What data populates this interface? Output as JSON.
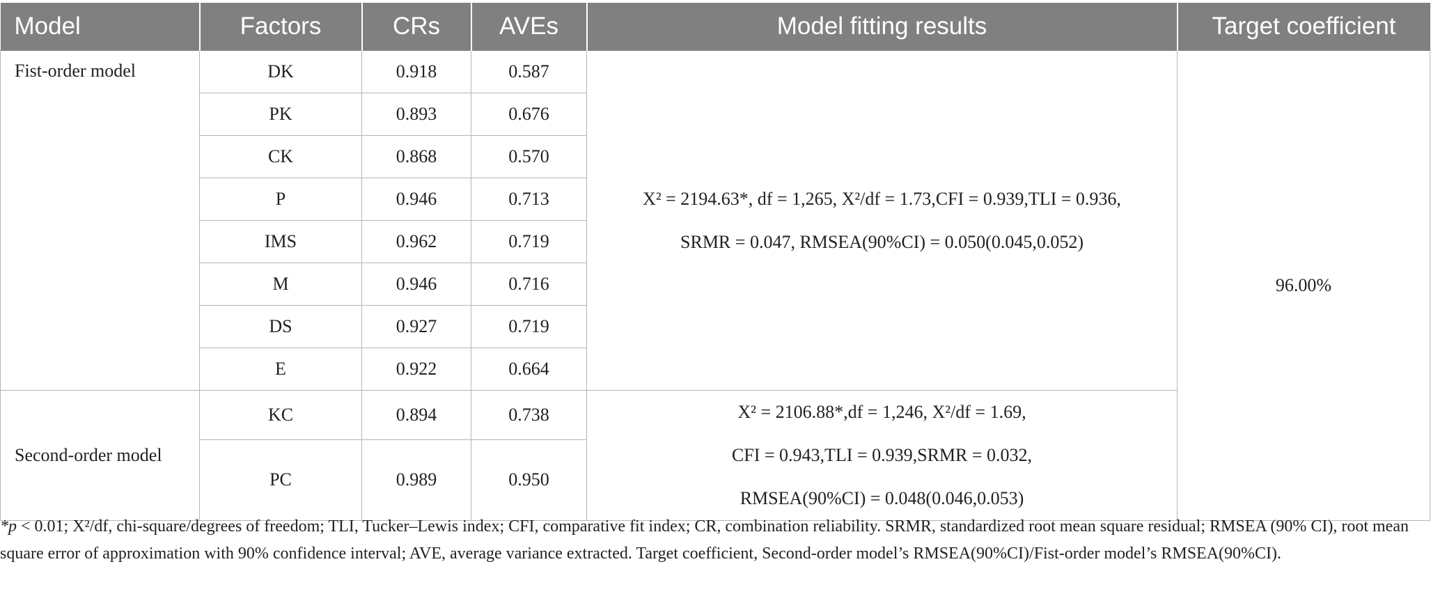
{
  "table": {
    "headers": [
      "Model",
      "Factors",
      "CRs",
      "AVEs",
      "Model fitting results",
      "Target coefficient"
    ],
    "first_order": {
      "label": "Fist-order model",
      "rows": [
        {
          "factor": "DK",
          "cr": "0.918",
          "ave": "0.587"
        },
        {
          "factor": "PK",
          "cr": "0.893",
          "ave": "0.676"
        },
        {
          "factor": "CK",
          "cr": "0.868",
          "ave": "0.570"
        },
        {
          "factor": "P",
          "cr": "0.946",
          "ave": "0.713"
        },
        {
          "factor": "IMS",
          "cr": "0.962",
          "ave": "0.719"
        },
        {
          "factor": "M",
          "cr": "0.946",
          "ave": "0.716"
        },
        {
          "factor": "DS",
          "cr": "0.927",
          "ave": "0.719"
        },
        {
          "factor": "E",
          "cr": "0.922",
          "ave": "0.664"
        }
      ],
      "fit_lines": [
        "X² = 2194.63*, df = 1,265, X²/df = 1.73,CFI = 0.939,TLI = 0.936,",
        "SRMR = 0.047, RMSEA(90%CI) = 0.050(0.045,0.052)"
      ]
    },
    "second_order": {
      "label": "Second-order model",
      "rows": [
        {
          "factor": "KC",
          "cr": "0.894",
          "ave": "0.738"
        },
        {
          "factor": "PC",
          "cr": "0.989",
          "ave": "0.950"
        }
      ],
      "fit_lines": [
        "X² = 2106.88*,df = 1,246, X²/df = 1.69,",
        "CFI = 0.943,TLI = 0.939,SRMR = 0.032,",
        "RMSEA(90%CI) = 0.048(0.046,0.053)"
      ]
    },
    "target_coefficient": "96.00%"
  },
  "footnote": {
    "p_symbol": "*p",
    "text": " < 0.01; X²/df, chi-square/degrees of freedom; TLI, Tucker–Lewis index; CFI, comparative fit index; CR, combination reliability. SRMR, standardized root mean square residual; RMSEA (90% CI), root mean square error of approximation with 90% confidence interval; AVE, average variance extracted. Target coefficient, Second-order model’s RMSEA(90%CI)/Fist-order model’s RMSEA(90%CI)."
  }
}
